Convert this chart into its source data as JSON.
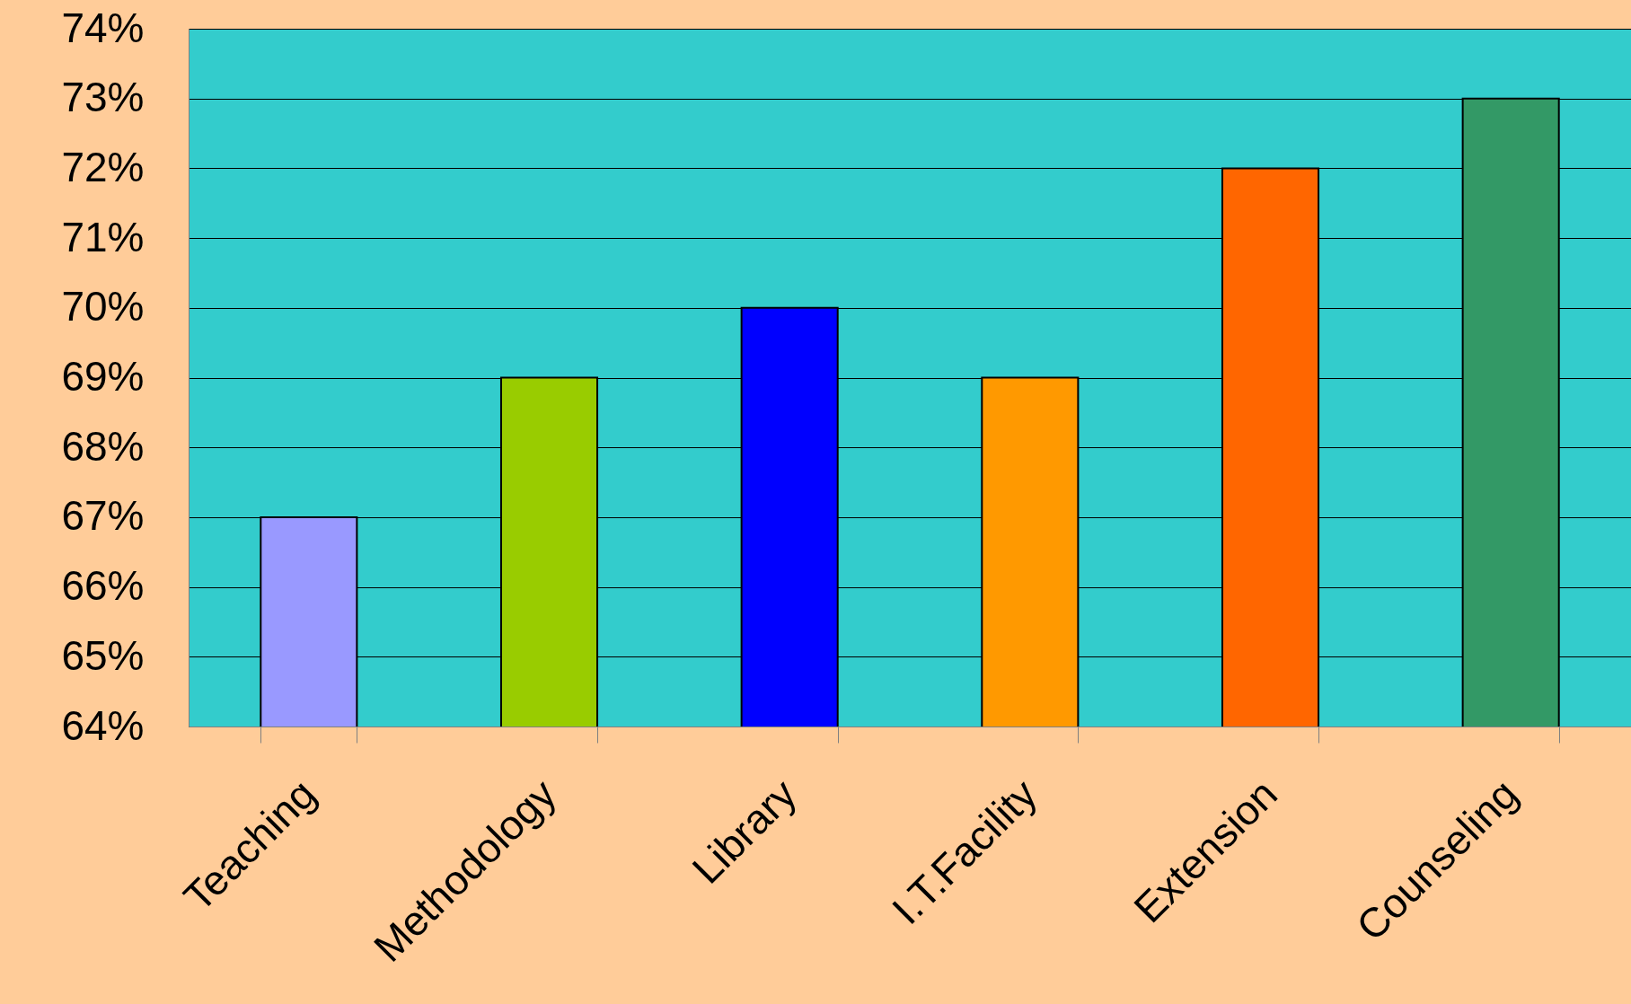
{
  "chart_data": {
    "type": "bar",
    "categories": [
      "Teaching",
      "Methodology",
      "Library",
      "I.T.Facility",
      "Extension",
      "Counseling"
    ],
    "values": [
      67,
      69,
      70,
      69,
      72,
      73
    ],
    "colors": [
      "#9999ff",
      "#99cc00",
      "#0000ff",
      "#ff9900",
      "#ff6600",
      "#339966"
    ],
    "ylim": [
      64,
      74
    ],
    "yticks": [
      {
        "value": 64,
        "label": "64%"
      },
      {
        "value": 65,
        "label": "65%"
      },
      {
        "value": 66,
        "label": "66%"
      },
      {
        "value": 67,
        "label": "67%"
      },
      {
        "value": 68,
        "label": "68%"
      },
      {
        "value": 69,
        "label": "69%"
      },
      {
        "value": 70,
        "label": "70%"
      },
      {
        "value": 71,
        "label": "71%"
      },
      {
        "value": 72,
        "label": "72%"
      },
      {
        "value": 73,
        "label": "73%"
      },
      {
        "value": 74,
        "label": "74%"
      }
    ],
    "grid": "y"
  }
}
